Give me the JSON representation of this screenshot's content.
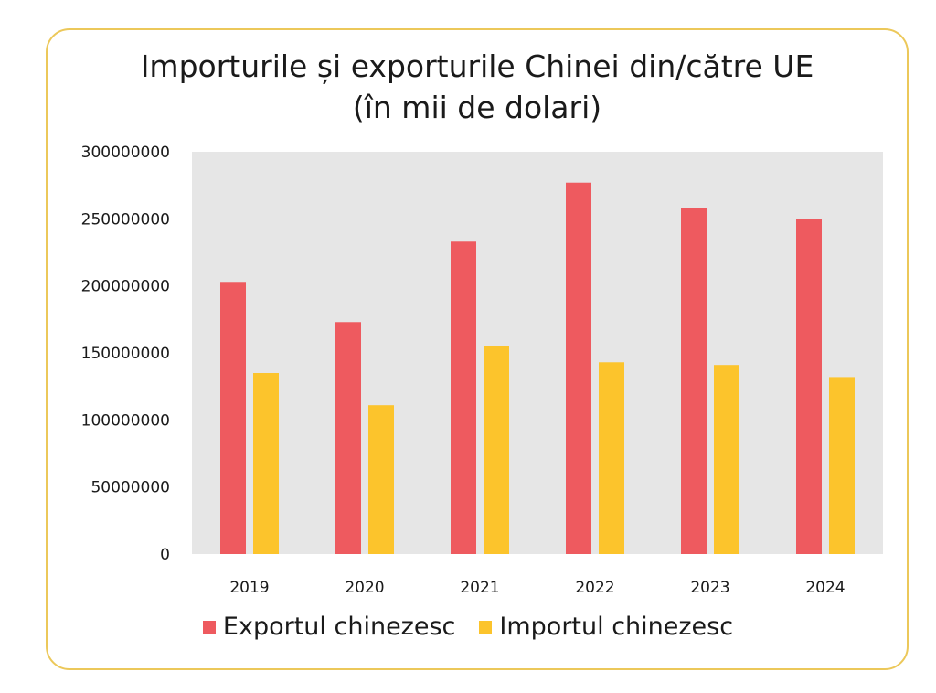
{
  "chart_data": {
    "type": "bar",
    "title": "Importurile și exporturile Chinei din/către UE",
    "subtitle": "(în mii de dolari)",
    "categories": [
      "2019",
      "2020",
      "2021",
      "2022",
      "2023",
      "2024"
    ],
    "series": [
      {
        "name": "Exportul chinezesc",
        "color": "#ee5a5f",
        "values": [
          203000000,
          173000000,
          233000000,
          277000000,
          258000000,
          250000000
        ]
      },
      {
        "name": "Importul chinezesc",
        "color": "#fcc42c",
        "values": [
          135000000,
          111000000,
          155000000,
          143000000,
          141000000,
          132000000
        ]
      }
    ],
    "yticks": [
      "0",
      "50000000",
      "100000000",
      "150000000",
      "200000000",
      "250000000",
      "300000000"
    ],
    "ylim": [
      0,
      300000000
    ],
    "plot_background": "#e6e6e6",
    "grid": false,
    "legend_position": "bottom"
  }
}
